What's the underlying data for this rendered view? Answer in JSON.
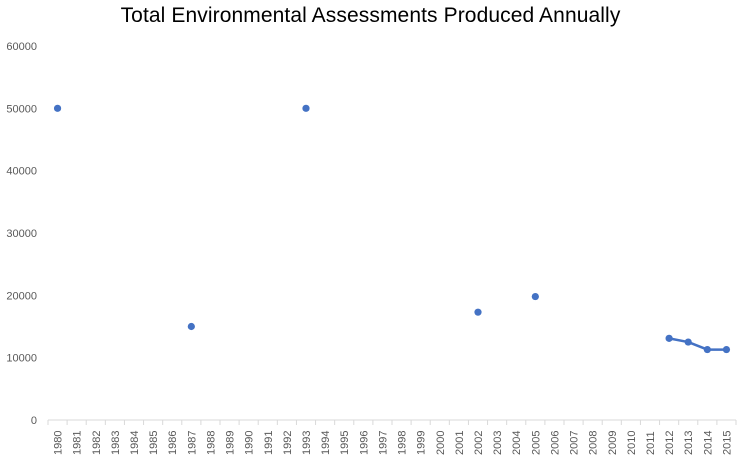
{
  "chart_data": {
    "type": "line",
    "title": "Total Environmental Assessments Produced Annually",
    "xlabel": "",
    "ylabel": "",
    "ylim": [
      0,
      60000
    ],
    "yticks": [
      0,
      10000,
      20000,
      30000,
      40000,
      50000,
      60000
    ],
    "categories": [
      "1980",
      "1981",
      "1982",
      "1983",
      "1984",
      "1985",
      "1986",
      "1987",
      "1988",
      "1989",
      "1990",
      "1991",
      "1992",
      "1993",
      "1994",
      "1995",
      "1996",
      "1997",
      "1998",
      "1999",
      "2000",
      "2001",
      "2002",
      "2003",
      "2004",
      "2005",
      "2006",
      "2007",
      "2008",
      "2009",
      "2010",
      "2011",
      "2012",
      "2013",
      "2014",
      "2015"
    ],
    "series": [
      {
        "name": "Total Environmental Assessments",
        "color": "#4472C4",
        "values": [
          50000,
          null,
          null,
          null,
          null,
          null,
          null,
          15000,
          null,
          null,
          null,
          null,
          null,
          50000,
          null,
          null,
          null,
          null,
          null,
          null,
          null,
          null,
          17300,
          null,
          null,
          19800,
          null,
          null,
          null,
          null,
          null,
          null,
          13100,
          12500,
          11300,
          11300
        ]
      }
    ],
    "grid": false,
    "legend": "none"
  }
}
